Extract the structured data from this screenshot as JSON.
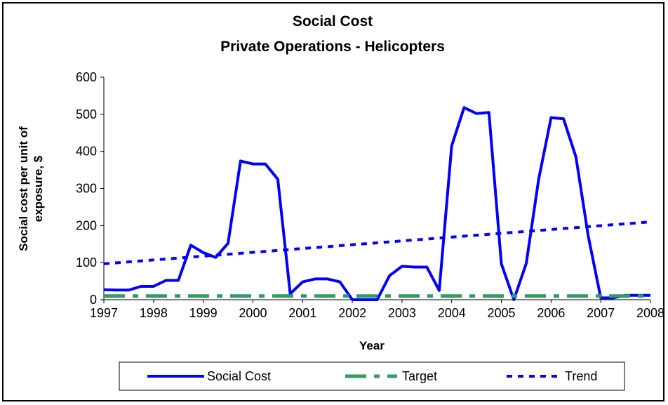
{
  "chart_data": {
    "type": "line",
    "title": "Social Cost",
    "subtitle": "Private Operations - Helicopters",
    "xlabel": "Year",
    "ylabel_line1": "Social cost per unit of",
    "ylabel_line2": "exposure, $",
    "xlim": [
      1997,
      2008
    ],
    "ylim": [
      0,
      600
    ],
    "x_ticks": [
      "1997",
      "1998",
      "1999",
      "2000",
      "2001",
      "2002",
      "2003",
      "2004",
      "2005",
      "2006",
      "2007",
      "2008"
    ],
    "y_ticks": [
      "0",
      "100",
      "200",
      "300",
      "400",
      "500",
      "600"
    ],
    "grid": false,
    "legend_position": "bottom",
    "series": [
      {
        "name": "Social Cost",
        "color": "#0000FF",
        "style": "solid",
        "points": [
          [
            1997.0,
            27
          ],
          [
            1997.25,
            26
          ],
          [
            1997.5,
            26
          ],
          [
            1997.75,
            36
          ],
          [
            1998.0,
            36
          ],
          [
            1998.25,
            52
          ],
          [
            1998.5,
            52
          ],
          [
            1998.75,
            147
          ],
          [
            1999.0,
            127
          ],
          [
            1999.25,
            114
          ],
          [
            1999.5,
            152
          ],
          [
            1999.75,
            374
          ],
          [
            2000.0,
            366
          ],
          [
            2000.25,
            366
          ],
          [
            2000.5,
            325
          ],
          [
            2000.75,
            16
          ],
          [
            2001.0,
            48
          ],
          [
            2001.25,
            56
          ],
          [
            2001.5,
            56
          ],
          [
            2001.75,
            48
          ],
          [
            2002.0,
            0
          ],
          [
            2002.25,
            0
          ],
          [
            2002.5,
            0
          ],
          [
            2002.75,
            65
          ],
          [
            2003.0,
            90
          ],
          [
            2003.25,
            88
          ],
          [
            2003.5,
            88
          ],
          [
            2003.75,
            25
          ],
          [
            2004.0,
            415
          ],
          [
            2004.25,
            518
          ],
          [
            2004.5,
            502
          ],
          [
            2004.75,
            505
          ],
          [
            2005.0,
            97
          ],
          [
            2005.25,
            0
          ],
          [
            2005.5,
            98
          ],
          [
            2005.75,
            325
          ],
          [
            2006.0,
            491
          ],
          [
            2006.25,
            488
          ],
          [
            2006.5,
            385
          ],
          [
            2006.75,
            170
          ],
          [
            2007.0,
            5
          ],
          [
            2007.25,
            5
          ],
          [
            2007.5,
            12
          ],
          [
            2007.75,
            12
          ],
          [
            2008.0,
            12
          ]
        ]
      },
      {
        "name": "Target",
        "color": "#339966",
        "style": "dash",
        "points": [
          [
            1997,
            10
          ],
          [
            2008,
            10
          ]
        ]
      },
      {
        "name": "Trend",
        "color": "#0000FF",
        "style": "dot",
        "points": [
          [
            1997,
            97
          ],
          [
            2008,
            210
          ]
        ]
      }
    ]
  }
}
